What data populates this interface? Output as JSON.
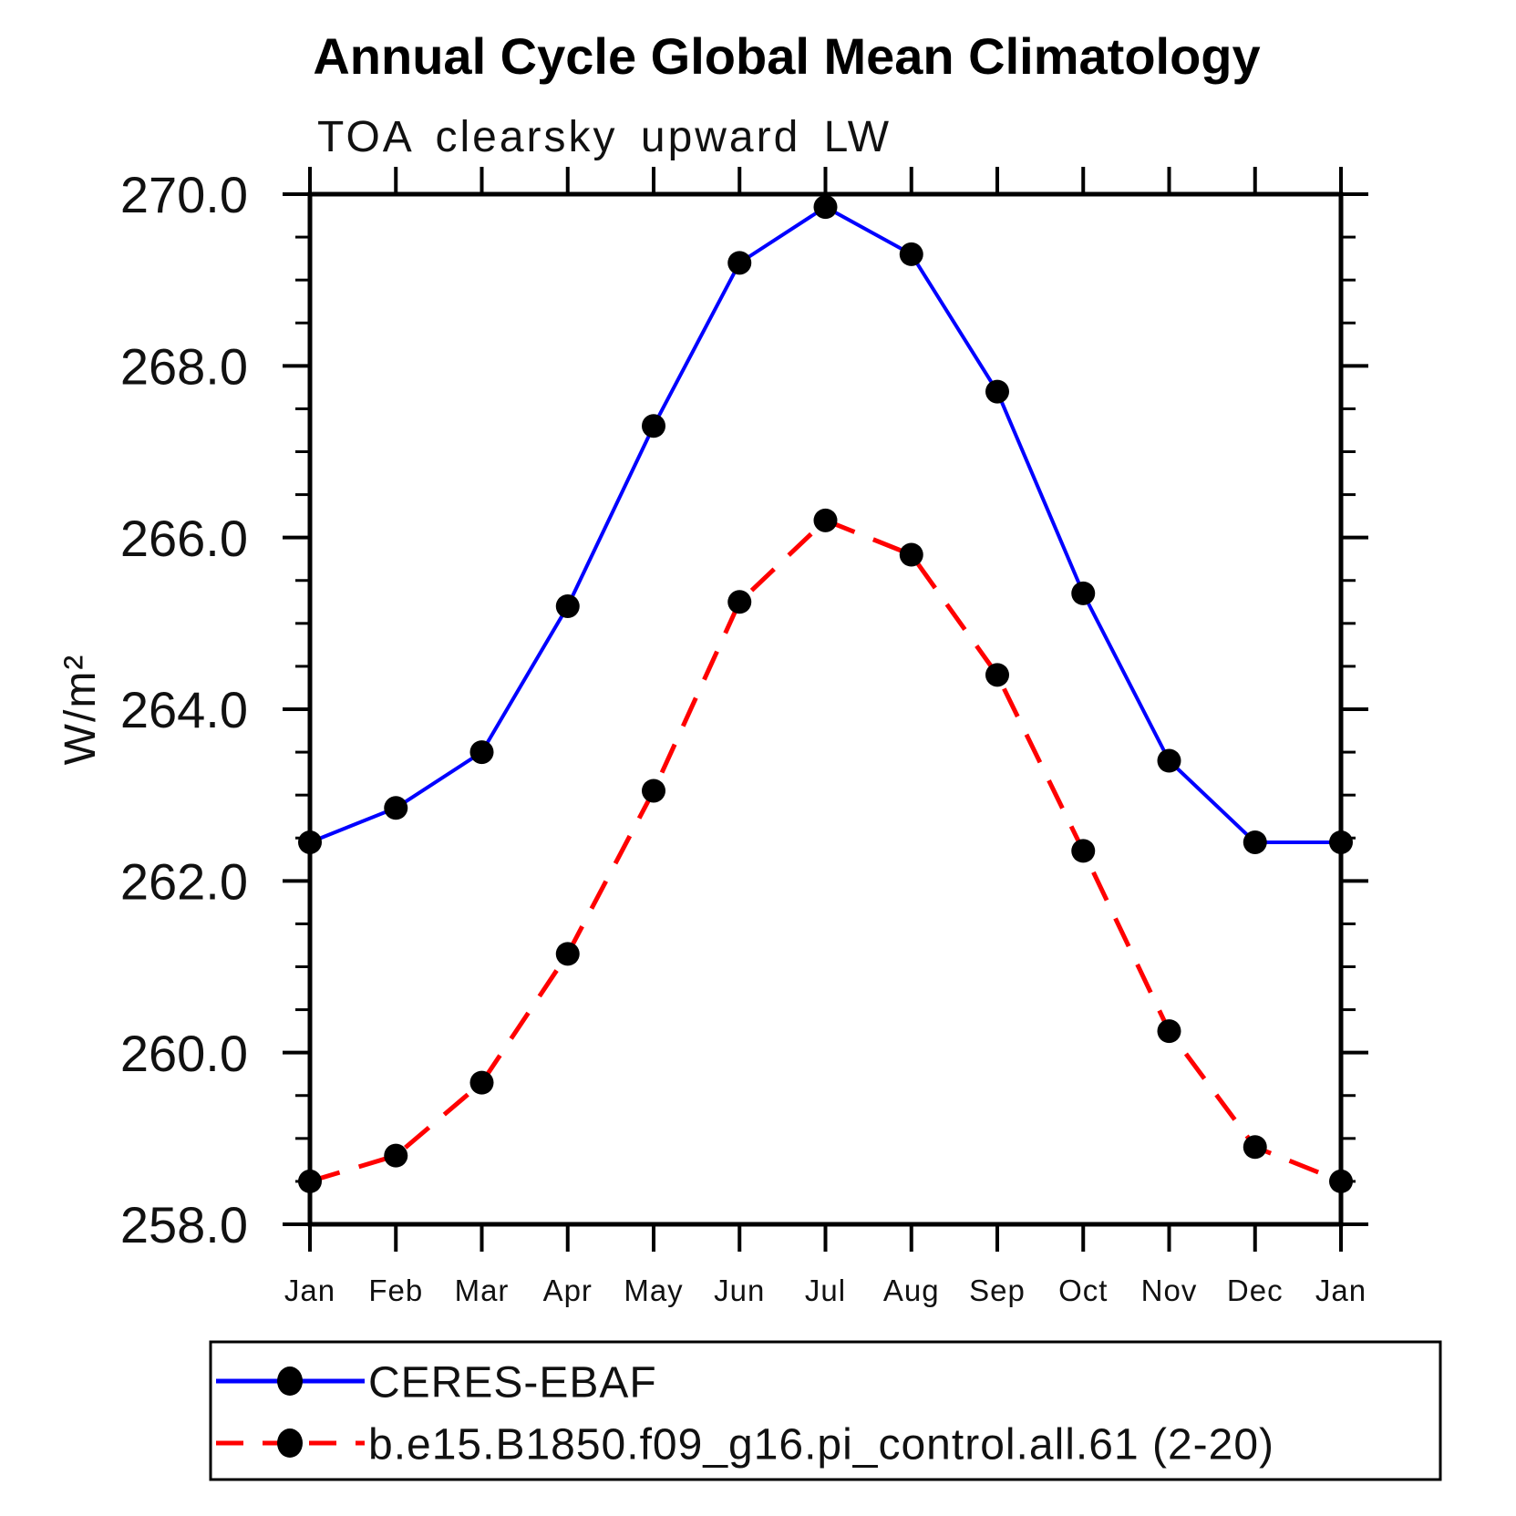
{
  "title": "Annual Cycle Global Mean Climatology",
  "subtitle": "TOA clearsky upward LW",
  "chart_data": {
    "type": "line",
    "categories": [
      "Jan",
      "Feb",
      "Mar",
      "Apr",
      "May",
      "Jun",
      "Jul",
      "Aug",
      "Sep",
      "Oct",
      "Nov",
      "Dec",
      "Jan"
    ],
    "title": "Annual Cycle Global Mean Climatology",
    "subtitle": "TOA clearsky upward LW",
    "xlabel": "",
    "ylabel": "W/m²",
    "ylim": [
      258.0,
      270.0
    ],
    "y_major_step": 2.0,
    "y_minor_step": 0.5,
    "ytick_labels": [
      "258.0",
      "260.0",
      "262.0",
      "264.0",
      "266.0",
      "268.0",
      "270.0"
    ],
    "grid": false,
    "tick_direction": "outward",
    "legend_position": "bottom",
    "axis_color": "#000000",
    "marker_color": "#000000",
    "series": [
      {
        "name": "CERES-EBAF",
        "color": "#0000ff",
        "line_style": "solid",
        "marker": "filled-circle",
        "values": [
          262.45,
          262.85,
          263.5,
          265.2,
          267.3,
          269.2,
          269.85,
          269.3,
          267.7,
          265.35,
          263.4,
          262.45,
          262.45
        ]
      },
      {
        "name": "b.e15.B1850.f09_g16.pi_control.all.61 (2-20)",
        "color": "#ff0000",
        "line_style": "dashed",
        "marker": "filled-circle",
        "values": [
          258.5,
          258.8,
          259.65,
          261.15,
          263.05,
          265.25,
          266.2,
          265.8,
          264.4,
          262.35,
          260.25,
          258.9,
          258.5
        ]
      }
    ]
  }
}
